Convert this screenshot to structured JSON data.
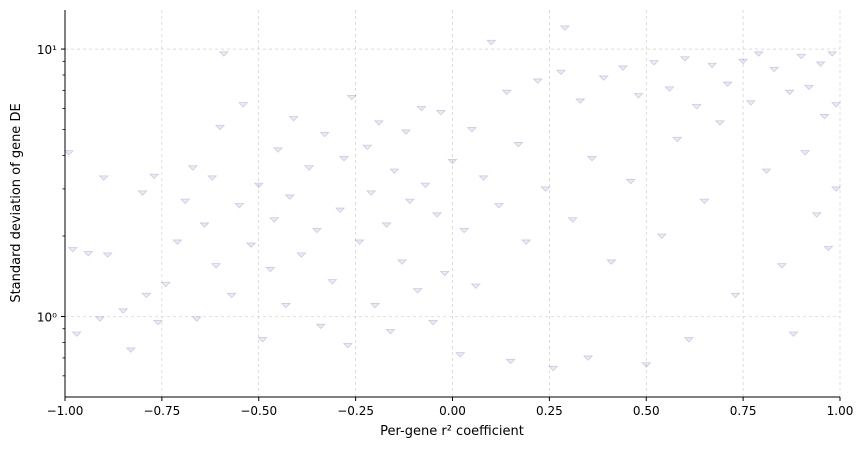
{
  "chart_data": {
    "type": "scatter",
    "title": "",
    "xlabel": "Per-gene r² coefficient",
    "ylabel": "Standard deviation of gene DE",
    "xlim": [
      -1.0,
      1.0
    ],
    "ylim": [
      0.5,
      14
    ],
    "y_scale": "log",
    "grid": true,
    "legend": "none",
    "marker": "triangle-down",
    "color": "#000080",
    "marker_alpha": 0.08,
    "x_ticks": [
      -1.0,
      -0.75,
      -0.5,
      -0.25,
      0.0,
      0.25,
      0.5,
      0.75,
      1.0
    ],
    "x_tick_labels": [
      "−1.00",
      "−0.75",
      "−0.50",
      "−0.25",
      "0.00",
      "0.25",
      "0.50",
      "0.75",
      "1.00"
    ],
    "y_ticks": [
      1,
      10
    ],
    "y_tick_labels": [
      "10⁰",
      "10¹"
    ],
    "series": [
      {
        "points": [
          [
            -0.99,
            4.1
          ],
          [
            -0.98,
            1.78
          ],
          [
            -0.97,
            0.86
          ],
          [
            -0.94,
            1.72
          ],
          [
            -0.91,
            0.98
          ],
          [
            -0.9,
            3.3
          ],
          [
            -0.89,
            1.7
          ],
          [
            -0.85,
            1.05
          ],
          [
            -0.83,
            0.75
          ],
          [
            -0.8,
            2.9
          ],
          [
            -0.79,
            1.2
          ],
          [
            -0.77,
            3.35
          ],
          [
            -0.76,
            0.95
          ],
          [
            -0.74,
            1.32
          ],
          [
            -0.71,
            1.9
          ],
          [
            -0.69,
            2.7
          ],
          [
            -0.67,
            3.6
          ],
          [
            -0.66,
            0.98
          ],
          [
            -0.64,
            2.2
          ],
          [
            -0.62,
            3.3
          ],
          [
            -0.61,
            1.55
          ],
          [
            -0.6,
            5.1
          ],
          [
            -0.59,
            9.6
          ],
          [
            -0.57,
            1.2
          ],
          [
            -0.55,
            2.6
          ],
          [
            -0.54,
            6.2
          ],
          [
            -0.52,
            1.85
          ],
          [
            -0.5,
            3.1
          ],
          [
            -0.49,
            0.82
          ],
          [
            -0.47,
            1.5
          ],
          [
            -0.46,
            2.3
          ],
          [
            -0.45,
            4.2
          ],
          [
            -0.43,
            1.1
          ],
          [
            -0.42,
            2.8
          ],
          [
            -0.41,
            5.5
          ],
          [
            -0.39,
            1.7
          ],
          [
            -0.37,
            3.6
          ],
          [
            -0.35,
            2.1
          ],
          [
            -0.34,
            0.92
          ],
          [
            -0.33,
            4.8
          ],
          [
            -0.31,
            1.35
          ],
          [
            -0.29,
            2.5
          ],
          [
            -0.28,
            3.9
          ],
          [
            -0.27,
            0.78
          ],
          [
            -0.26,
            6.6
          ],
          [
            -0.24,
            1.9
          ],
          [
            -0.22,
            4.3
          ],
          [
            -0.21,
            2.9
          ],
          [
            -0.2,
            1.1
          ],
          [
            -0.19,
            5.3
          ],
          [
            -0.17,
            2.2
          ],
          [
            -0.16,
            0.88
          ],
          [
            -0.15,
            3.5
          ],
          [
            -0.13,
            1.6
          ],
          [
            -0.12,
            4.9
          ],
          [
            -0.11,
            2.7
          ],
          [
            -0.09,
            1.25
          ],
          [
            -0.08,
            6.0
          ],
          [
            -0.07,
            3.1
          ],
          [
            -0.05,
            0.95
          ],
          [
            -0.04,
            2.4
          ],
          [
            -0.03,
            5.8
          ],
          [
            -0.02,
            1.45
          ],
          [
            0.0,
            3.8
          ],
          [
            0.02,
            0.72
          ],
          [
            0.03,
            2.1
          ],
          [
            0.05,
            5.0
          ],
          [
            0.06,
            1.3
          ],
          [
            0.08,
            3.3
          ],
          [
            0.1,
            10.6
          ],
          [
            0.12,
            2.6
          ],
          [
            0.14,
            6.9
          ],
          [
            0.15,
            0.68
          ],
          [
            0.17,
            4.4
          ],
          [
            0.19,
            1.9
          ],
          [
            0.22,
            7.6
          ],
          [
            0.24,
            3.0
          ],
          [
            0.26,
            0.64
          ],
          [
            0.28,
            8.2
          ],
          [
            0.29,
            12.0
          ],
          [
            0.31,
            2.3
          ],
          [
            0.33,
            6.4
          ],
          [
            0.35,
            0.7
          ],
          [
            0.36,
            3.9
          ],
          [
            0.39,
            7.8
          ],
          [
            0.41,
            1.6
          ],
          [
            0.44,
            8.5
          ],
          [
            0.46,
            3.2
          ],
          [
            0.48,
            6.7
          ],
          [
            0.5,
            0.66
          ],
          [
            0.52,
            8.9
          ],
          [
            0.54,
            2.0
          ],
          [
            0.56,
            7.1
          ],
          [
            0.58,
            4.6
          ],
          [
            0.6,
            9.2
          ],
          [
            0.61,
            0.82
          ],
          [
            0.63,
            6.1
          ],
          [
            0.65,
            2.7
          ],
          [
            0.67,
            8.7
          ],
          [
            0.69,
            5.3
          ],
          [
            0.71,
            7.4
          ],
          [
            0.73,
            1.2
          ],
          [
            0.75,
            9.0
          ],
          [
            0.77,
            6.3
          ],
          [
            0.79,
            9.6
          ],
          [
            0.81,
            3.5
          ],
          [
            0.83,
            8.4
          ],
          [
            0.85,
            1.55
          ],
          [
            0.87,
            6.9
          ],
          [
            0.88,
            0.86
          ],
          [
            0.9,
            9.4
          ],
          [
            0.91,
            4.1
          ],
          [
            0.92,
            7.2
          ],
          [
            0.94,
            2.4
          ],
          [
            0.95,
            8.8
          ],
          [
            0.96,
            5.6
          ],
          [
            0.97,
            1.8
          ],
          [
            0.98,
            9.6
          ],
          [
            0.99,
            6.2
          ],
          [
            0.99,
            3.0
          ]
        ]
      }
    ]
  }
}
